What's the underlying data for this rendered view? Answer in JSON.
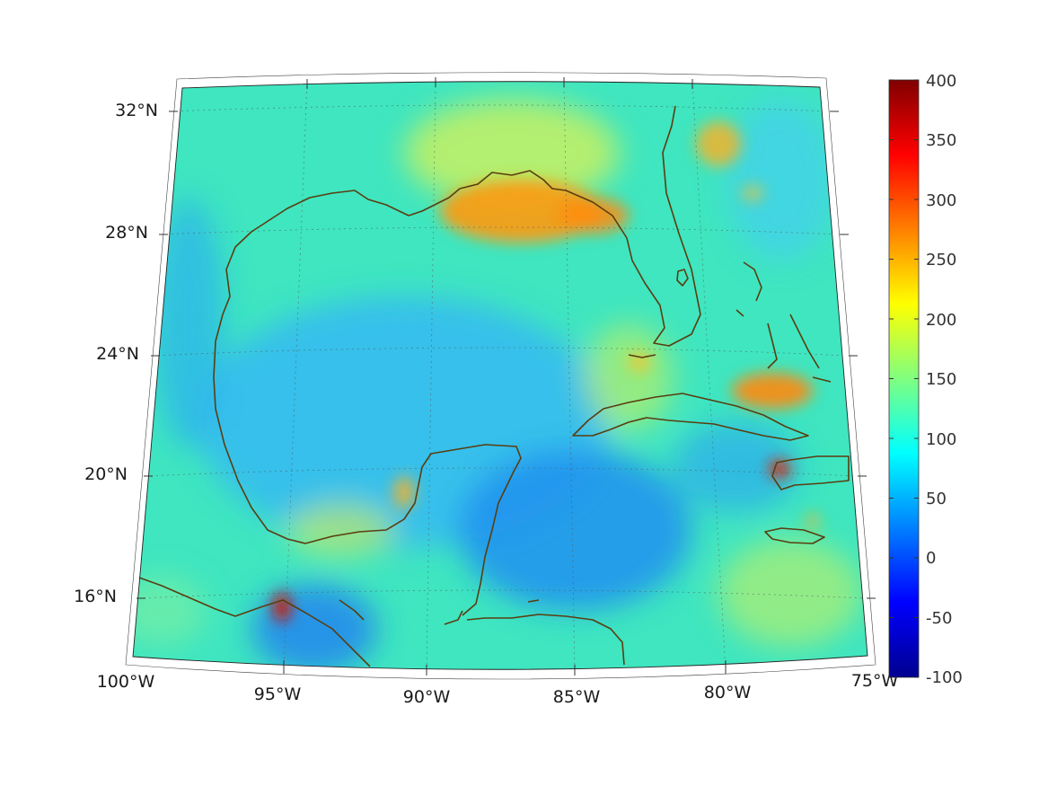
{
  "map": {
    "region": "Gulf of Mexico and Caribbean",
    "lon_labels": [
      "100°W",
      "95°W",
      "90°W",
      "85°W",
      "80°W",
      "75°W"
    ],
    "lat_labels": [
      "32°N",
      "28°N",
      "24°N",
      "20°N",
      "16°N"
    ],
    "lon_range": [
      -100,
      -75
    ],
    "lat_range": [
      14,
      33
    ],
    "graticule": true,
    "coastline_color": "#5a3d10"
  },
  "colorbar": {
    "ticks": [
      "400",
      "350",
      "300",
      "250",
      "200",
      "150",
      "100",
      "50",
      "0",
      "-50",
      "-100"
    ],
    "min": -100,
    "max": 400,
    "colormap": "jet",
    "placement": "right"
  }
}
